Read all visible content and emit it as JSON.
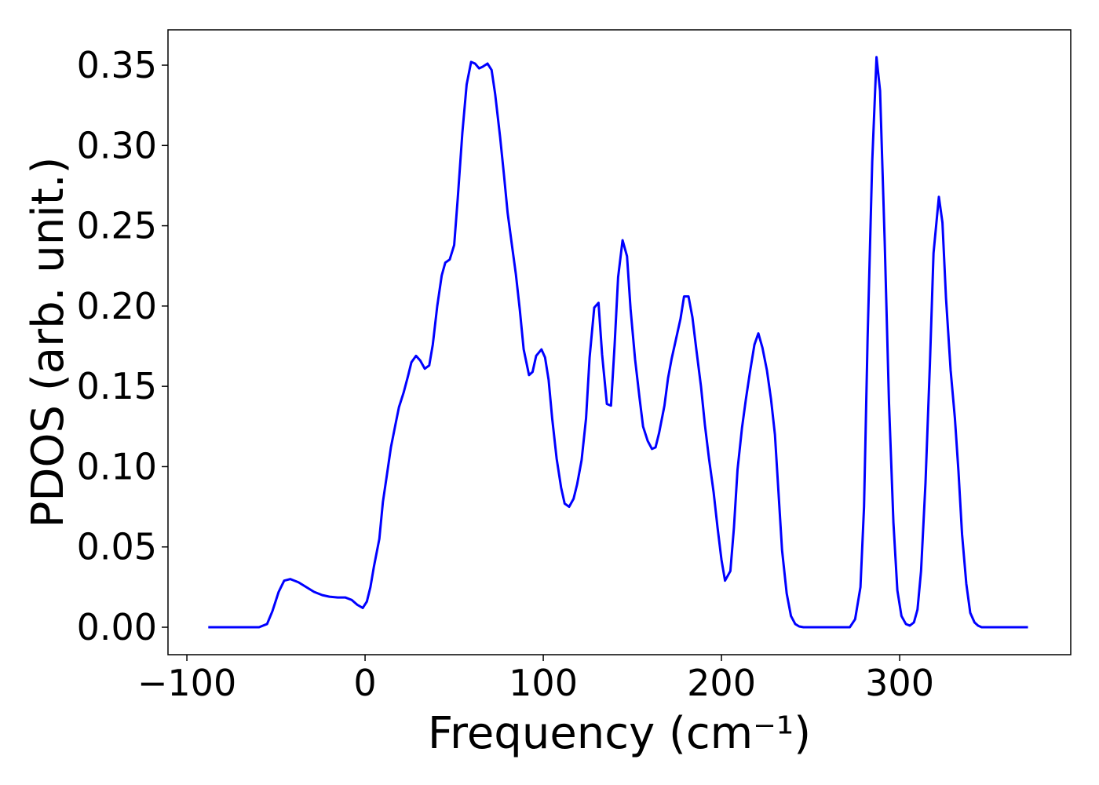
{
  "chart_data": {
    "type": "line",
    "xlabel": "Frequency (cm⁻¹)",
    "ylabel": "PDOS (arb. unit.)",
    "x": [
      -88,
      -59.5,
      -55,
      -52,
      -48.5,
      -45.4,
      -42,
      -37.4,
      -33,
      -28.6,
      -24,
      -20,
      -15.4,
      -11,
      -7.5,
      -4.4,
      -1.3,
      1,
      3,
      5,
      8,
      10,
      12,
      14.5,
      17,
      19,
      21.6,
      24,
      26,
      28.6,
      31,
      33.5,
      36,
      38,
      40.5,
      43,
      45,
      47.5,
      50,
      52,
      54.6,
      57,
      59.5,
      61.7,
      64,
      66,
      68.7,
      71,
      73,
      75.8,
      78,
      80,
      82.4,
      84.6,
      86.8,
      89,
      92,
      94,
      96,
      99,
      101,
      103,
      105,
      107.5,
      110,
      112,
      114.5,
      117,
      119,
      121.5,
      124,
      126,
      128.6,
      131,
      133,
      135.7,
      138,
      140,
      142,
      144.5,
      147,
      149,
      151.5,
      154,
      156,
      158.6,
      161,
      163,
      165,
      168,
      170,
      172,
      174,
      177,
      179,
      181.5,
      183.7,
      186,
      188.5,
      190.7,
      193,
      195.6,
      197.8,
      200,
      202,
      205,
      207,
      209,
      211.5,
      213.7,
      216,
      218.5,
      220.7,
      223,
      225.5,
      227.8,
      230,
      232,
      234,
      236.6,
      239,
      241.4,
      243.6,
      246,
      272,
      275,
      278,
      280,
      282,
      284.6,
      287,
      289,
      291.6,
      294,
      296.5,
      298.7,
      301,
      303.5,
      305.7,
      308,
      310,
      312,
      314.5,
      317,
      319,
      322,
      324,
      326,
      328.6,
      331,
      333,
      335,
      337.4,
      339.6,
      342,
      344,
      346,
      372
    ],
    "series": [
      {
        "name": "PDOS",
        "color": "#0000ff",
        "values": [
          0,
          0,
          0.002,
          0.01,
          0.022,
          0.029,
          0.03,
          0.028,
          0.025,
          0.022,
          0.02,
          0.019,
          0.0185,
          0.0185,
          0.017,
          0.014,
          0.012,
          0.016,
          0.025,
          0.038,
          0.055,
          0.078,
          0.093,
          0.112,
          0.126,
          0.137,
          0.146,
          0.156,
          0.165,
          0.169,
          0.166,
          0.161,
          0.163,
          0.176,
          0.2,
          0.219,
          0.227,
          0.229,
          0.238,
          0.267,
          0.308,
          0.338,
          0.352,
          0.351,
          0.348,
          0.349,
          0.351,
          0.347,
          0.332,
          0.305,
          0.281,
          0.258,
          0.238,
          0.22,
          0.198,
          0.173,
          0.157,
          0.159,
          0.169,
          0.173,
          0.168,
          0.154,
          0.13,
          0.105,
          0.087,
          0.077,
          0.075,
          0.08,
          0.089,
          0.104,
          0.13,
          0.168,
          0.199,
          0.202,
          0.17,
          0.139,
          0.138,
          0.175,
          0.218,
          0.241,
          0.231,
          0.198,
          0.167,
          0.143,
          0.125,
          0.116,
          0.111,
          0.112,
          0.121,
          0.138,
          0.155,
          0.167,
          0.177,
          0.192,
          0.206,
          0.206,
          0.193,
          0.172,
          0.15,
          0.126,
          0.105,
          0.084,
          0.062,
          0.042,
          0.029,
          0.035,
          0.062,
          0.098,
          0.124,
          0.142,
          0.159,
          0.176,
          0.183,
          0.174,
          0.16,
          0.142,
          0.12,
          0.084,
          0.048,
          0.021,
          0.007,
          0.002,
          0.0005,
          0,
          0,
          0.005,
          0.025,
          0.075,
          0.18,
          0.29,
          0.355,
          0.334,
          0.24,
          0.14,
          0.065,
          0.023,
          0.007,
          0.002,
          0.001,
          0.003,
          0.011,
          0.035,
          0.09,
          0.165,
          0.233,
          0.268,
          0.252,
          0.205,
          0.16,
          0.13,
          0.097,
          0.058,
          0.027,
          0.009,
          0.003,
          0.001,
          0,
          0
        ]
      }
    ],
    "xlim": [
      -110.6,
      396
    ],
    "ylim": [
      -0.0171,
      0.372
    ],
    "xticks": [
      {
        "value": -100,
        "label": "−100"
      },
      0,
      100,
      200,
      300
    ],
    "yticks": [
      {
        "value": 0,
        "label": "0.00"
      },
      0.05,
      {
        "value": 0.1,
        "label": "0.10"
      },
      0.15,
      {
        "value": 0.2,
        "label": "0.20"
      },
      0.25,
      {
        "value": 0.3,
        "label": "0.30"
      },
      0.35
    ]
  }
}
